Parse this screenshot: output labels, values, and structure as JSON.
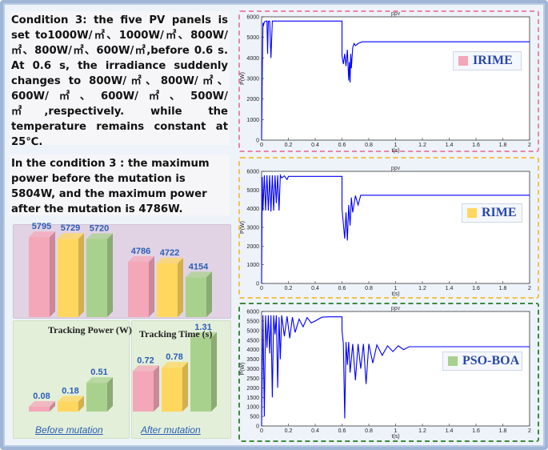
{
  "description_condition": "Condition 3: the five PV panels is set to1000W/㎡、1000W/㎡、800W/㎡、800W/㎡、600W/㎡,before 0.6 s. At 0.6 s, the irradiance suddenly changes to 800W/㎡、800W/㎡、600W/㎡、600W/㎡、500W/㎡,respectively. while the temperature remains constant at 25℃.",
  "description_result": "In the condition 3 : the maximum power before the mutation is 5804W, and the maximum power after the mutation is 4786W.",
  "colors": {
    "irime": "#f4a7b9",
    "rime": "#ffd75e",
    "psoboa": "#a9d18e",
    "line": "#0000ff",
    "frame_pink": "#e986a6",
    "frame_yellow": "#f2c14e",
    "frame_green": "#3d8a3d"
  },
  "labels": {
    "tracking_power": "Tracking  Power (W)",
    "tracking_time": "Tracking Time (s)",
    "before_mutation": "Before mutation",
    "after_mutation": "After mutation"
  },
  "legends": {
    "irime": "IRIME",
    "rime": "RIME",
    "psoboa": "PSO-BOA"
  },
  "chart_data": [
    {
      "type": "bar",
      "title": "Tracking  Power (W)",
      "group": "before mutation",
      "categories": [
        "IRIME",
        "RIME",
        "PSO-BOA"
      ],
      "values": [
        5795,
        5729,
        5720
      ]
    },
    {
      "type": "bar",
      "title": "Tracking  Power (W)",
      "group": "after mutation",
      "categories": [
        "IRIME",
        "RIME",
        "PSO-BOA"
      ],
      "values": [
        4786,
        4722,
        4154
      ]
    },
    {
      "type": "bar",
      "title": "Tracking Time (s)",
      "group": "Before mutation",
      "categories": [
        "IRIME",
        "RIME",
        "PSO-BOA"
      ],
      "values": [
        0.08,
        0.18,
        0.51
      ]
    },
    {
      "type": "bar",
      "title": "Tracking Time (s)",
      "group": "After mutation",
      "categories": [
        "IRIME",
        "RIME",
        "PSO-BOA"
      ],
      "values": [
        0.72,
        0.78,
        1.31
      ]
    },
    {
      "type": "line",
      "title": "ppv",
      "algorithm": "IRIME",
      "xlabel": "t(s)",
      "ylabel": "P(W)",
      "xlim": [
        0,
        2
      ],
      "ylim": [
        0,
        6000
      ],
      "xticks": [
        "0",
        "0.2",
        "0.4",
        "0.6",
        "0.8",
        "1",
        "1.2",
        "1.4",
        "1.6",
        "1.8",
        "2"
      ],
      "yticks": [
        "0",
        "1000",
        "2000",
        "3000",
        "4000",
        "5000",
        "6000"
      ],
      "x": [
        0,
        0.005,
        0.01,
        0.015,
        0.02,
        0.03,
        0.04,
        0.045,
        0.05,
        0.055,
        0.06,
        0.07,
        0.08,
        0.09,
        0.1,
        0.2,
        0.4,
        0.6,
        0.6,
        0.61,
        0.62,
        0.63,
        0.64,
        0.65,
        0.655,
        0.66,
        0.665,
        0.67,
        0.68,
        0.69,
        0.7,
        0.72,
        0.75,
        0.8,
        1,
        1.2,
        1.4,
        1.6,
        1.8,
        2
      ],
      "y": [
        0,
        3100,
        5700,
        5600,
        5750,
        5780,
        5800,
        4200,
        5780,
        5790,
        5795,
        4000,
        5795,
        5795,
        5795,
        5795,
        5795,
        5795,
        4100,
        3700,
        4200,
        3600,
        4400,
        2900,
        3800,
        2800,
        4200,
        3500,
        4500,
        4700,
        4600,
        4700,
        4786,
        4786,
        4786,
        4786,
        4786,
        4786,
        4786,
        4786
      ]
    },
    {
      "type": "line",
      "title": "ppv",
      "algorithm": "RIME",
      "xlabel": "t(s)",
      "ylabel": "P(W)",
      "xlim": [
        0,
        2
      ],
      "ylim": [
        0,
        6000
      ],
      "xticks": [
        "0",
        "0.2",
        "0.4",
        "0.6",
        "0.8",
        "1",
        "1.2",
        "1.4",
        "1.6",
        "1.8",
        "2"
      ],
      "yticks": [
        "0",
        "1000",
        "2000",
        "3000",
        "4000",
        "5000",
        "6000"
      ],
      "x": [
        0,
        0.005,
        0.01,
        0.02,
        0.03,
        0.04,
        0.05,
        0.06,
        0.07,
        0.08,
        0.09,
        0.1,
        0.11,
        0.12,
        0.13,
        0.14,
        0.15,
        0.17,
        0.19,
        0.2,
        0.25,
        0.4,
        0.6,
        0.6,
        0.61,
        0.62,
        0.63,
        0.64,
        0.65,
        0.66,
        0.67,
        0.68,
        0.7,
        0.72,
        0.74,
        0.76,
        0.78,
        0.8,
        1,
        1.2,
        1.4,
        1.6,
        1.8,
        2
      ],
      "y": [
        0,
        5700,
        3900,
        5790,
        3900,
        5790,
        3900,
        5790,
        3850,
        5790,
        3900,
        5790,
        4300,
        5790,
        3900,
        5790,
        5650,
        5760,
        5560,
        5730,
        5729,
        5729,
        5729,
        4000,
        3200,
        2400,
        3800,
        2300,
        4200,
        3100,
        4600,
        3800,
        4700,
        4200,
        4722,
        4722,
        4722,
        4722,
        4722,
        4722,
        4722,
        4722,
        4722,
        4722
      ]
    },
    {
      "type": "line",
      "title": "ppv",
      "algorithm": "PSO-BOA",
      "xlabel": "t(s)",
      "ylabel": "P(W)",
      "xlim": [
        0,
        2
      ],
      "ylim": [
        0,
        6000
      ],
      "xticks": [
        "0",
        "0.2",
        "0.4",
        "0.6",
        "0.8",
        "1",
        "1.2",
        "1.4",
        "1.6",
        "1.8",
        "2"
      ],
      "yticks": [
        "0",
        "500",
        "1000",
        "1500",
        "2000",
        "2500",
        "3000",
        "3500",
        "4000",
        "4500",
        "5000",
        "5500",
        "6000"
      ],
      "x": [
        0,
        0.01,
        0.02,
        0.03,
        0.04,
        0.05,
        0.06,
        0.07,
        0.08,
        0.09,
        0.1,
        0.11,
        0.12,
        0.13,
        0.14,
        0.15,
        0.17,
        0.19,
        0.21,
        0.23,
        0.25,
        0.28,
        0.31,
        0.34,
        0.37,
        0.4,
        0.45,
        0.5,
        0.55,
        0.6,
        0.6,
        0.61,
        0.62,
        0.63,
        0.64,
        0.65,
        0.66,
        0.68,
        0.7,
        0.72,
        0.74,
        0.76,
        0.78,
        0.8,
        0.83,
        0.86,
        0.9,
        0.94,
        0.98,
        1.02,
        1.06,
        1.1,
        1.2,
        1.4,
        1.6,
        1.8,
        2
      ],
      "y": [
        0,
        5800,
        500,
        5800,
        4100,
        5800,
        3800,
        5800,
        1500,
        5800,
        4800,
        5800,
        2000,
        5700,
        3500,
        5800,
        4700,
        5750,
        4600,
        5700,
        4900,
        5600,
        5200,
        5680,
        5400,
        5500,
        5700,
        5720,
        5720,
        5720,
        5000,
        4300,
        400,
        4400,
        3200,
        4400,
        2800,
        4300,
        2400,
        4300,
        3000,
        4300,
        2200,
        4300,
        3300,
        4250,
        3700,
        4200,
        3900,
        4200,
        4000,
        4154,
        4154,
        4154,
        4154,
        4154,
        4154
      ]
    }
  ]
}
